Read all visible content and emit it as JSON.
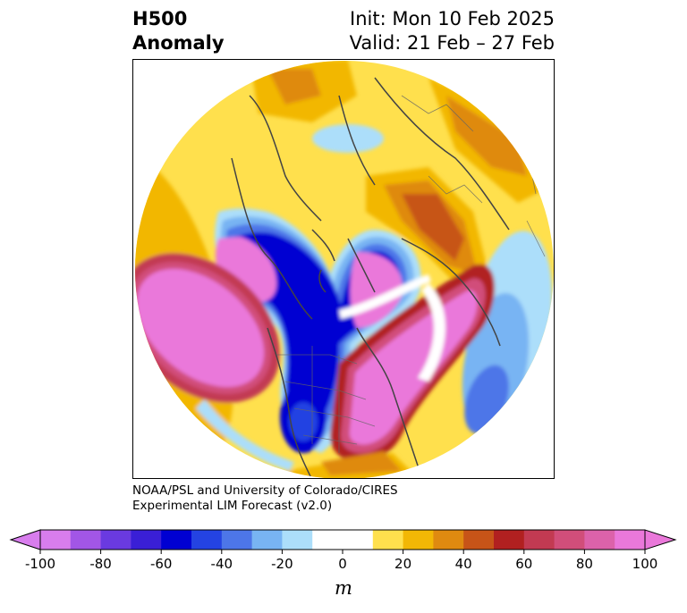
{
  "title": {
    "line1": "H500",
    "line2": "Anomaly"
  },
  "init_line": "Init: Mon 10 Feb 2025",
  "valid_line": "Valid: 21 Feb – 27 Feb",
  "credits": {
    "line1": "NOAA/PSL and University of Colorado/CIRES",
    "line2": "Experimental LIM Forecast (v2.0)"
  },
  "colorbar": {
    "unit": "m",
    "ticks": [
      "-100",
      "-80",
      "-60",
      "-40",
      "-20",
      "0",
      "20",
      "40",
      "60",
      "80",
      "100"
    ],
    "colors": [
      "#d87ded",
      "#a256e6",
      "#6a3ae0",
      "#3a1fd6",
      "#0000d2",
      "#2443e2",
      "#4d76e8",
      "#78b4f3",
      "#acdefa",
      "#ffffff",
      "#ffffff",
      "#ffe04d",
      "#f2b705",
      "#df8a10",
      "#c75418",
      "#b12020",
      "#c23a52",
      "#d14e7a",
      "#dc62aa",
      "#ea78da"
    ],
    "min": -100,
    "max": 100,
    "step": 10
  }
}
